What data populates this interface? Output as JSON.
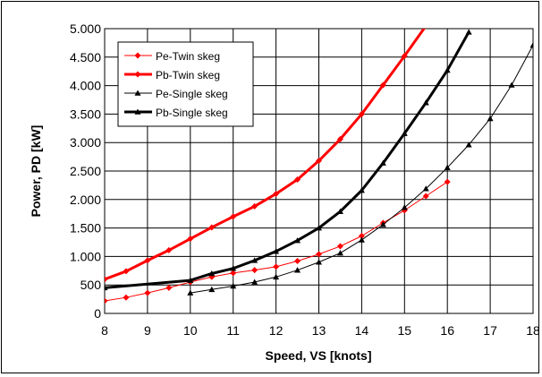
{
  "chart_data": {
    "type": "line",
    "title": "",
    "xlabel": "Speed, VS [knots]",
    "ylabel": "Power, PD [kW]",
    "xlim": [
      8,
      18
    ],
    "ylim": [
      0,
      5000
    ],
    "x_ticks": [
      8,
      9,
      10,
      11,
      12,
      13,
      14,
      15,
      16,
      17,
      18
    ],
    "y_ticks": [
      0,
      500,
      1000,
      1500,
      2000,
      2500,
      3000,
      3500,
      4000,
      4500,
      5000
    ],
    "x_tick_labels": [
      "8",
      "9",
      "10",
      "11",
      "12",
      "13",
      "14",
      "15",
      "16",
      "17",
      "18"
    ],
    "y_tick_labels": [
      "0",
      "500",
      "1.000",
      "1.500",
      "2.000",
      "2.500",
      "3.000",
      "3.500",
      "4.000",
      "4.500",
      "5.000"
    ],
    "grid": true,
    "legend_position": "top-left",
    "series": [
      {
        "name": "Pe-Twin skeg",
        "color": "#ff0000",
        "marker": "diamond",
        "line": "thin",
        "x": [
          8,
          8.5,
          9,
          9.5,
          10,
          10.5,
          11,
          11.5,
          12,
          12.5,
          13,
          13.5,
          14,
          14.5,
          15,
          15.5,
          16
        ],
        "y": [
          220,
          280,
          360,
          450,
          550,
          640,
          710,
          760,
          820,
          920,
          1040,
          1180,
          1360,
          1590,
          1810,
          2060,
          2310
        ]
      },
      {
        "name": "Pb-Twin skeg",
        "color": "#ff0000",
        "marker": "diamond",
        "line": "thick",
        "x": [
          8,
          8.5,
          9,
          9.5,
          10,
          10.5,
          11,
          11.5,
          12,
          12.5,
          13,
          13.5,
          14,
          14.5,
          15,
          15.5
        ],
        "y": [
          600,
          740,
          930,
          1110,
          1310,
          1510,
          1700,
          1880,
          2100,
          2350,
          2680,
          3060,
          3500,
          4010,
          4520,
          5050
        ]
      },
      {
        "name": "Pe-Single skeg",
        "color": "#000000",
        "marker": "triangle",
        "line": "thin",
        "x": [
          10,
          10.5,
          11,
          11.5,
          12,
          12.5,
          13,
          13.5,
          14,
          14.5,
          15,
          15.5,
          16,
          16.5,
          17,
          17.5,
          18
        ],
        "y": [
          360,
          420,
          480,
          550,
          640,
          760,
          900,
          1060,
          1290,
          1560,
          1860,
          2190,
          2560,
          2960,
          3420,
          4010,
          4710
        ]
      },
      {
        "name": "Pb-Single skeg",
        "color": "#000000",
        "marker": "triangle",
        "line": "thick",
        "x": [
          8,
          10,
          10.5,
          11,
          11.5,
          12,
          12.5,
          13,
          13.5,
          14,
          14.5,
          15,
          15.5,
          16,
          16.5
        ],
        "y": [
          450,
          580,
          700,
          790,
          930,
          1090,
          1280,
          1500,
          1790,
          2160,
          2640,
          3160,
          3700,
          4270,
          4940
        ]
      }
    ]
  }
}
